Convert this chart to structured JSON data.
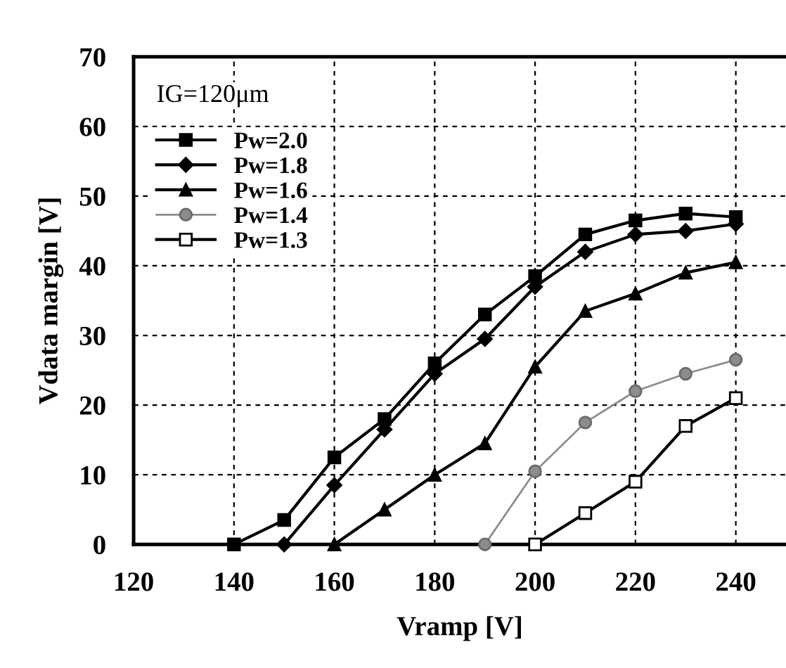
{
  "chart_data": {
    "type": "line",
    "xlabel": "Vramp [V]",
    "ylabel": "Vdata margin [V]",
    "xlim": [
      120,
      250
    ],
    "xticks": [
      120,
      140,
      160,
      180,
      200,
      220,
      240
    ],
    "ylim": [
      0,
      70
    ],
    "yticks": [
      0,
      10,
      20,
      30,
      40,
      50,
      60,
      70
    ],
    "grid": true,
    "legend": "top left",
    "annotations": [
      "IG=120μm"
    ],
    "series": [
      {
        "name": "Pw=2.0",
        "color": "#000000",
        "marker": "square",
        "x": [
          140,
          150,
          160,
          170,
          180,
          190,
          200,
          210,
          220,
          230,
          240
        ],
        "values": [
          0,
          3.5,
          12.5,
          18,
          26,
          33,
          38.5,
          44.5,
          46.5,
          47.5,
          47
        ]
      },
      {
        "name": "Pw=1.8",
        "color": "#000000",
        "marker": "diamond",
        "x": [
          150,
          160,
          170,
          180,
          190,
          200,
          210,
          220,
          230,
          240
        ],
        "values": [
          0,
          8.5,
          16.5,
          24.5,
          29.5,
          37,
          42,
          44.5,
          45,
          46
        ]
      },
      {
        "name": "Pw=1.6",
        "color": "#000000",
        "marker": "triangle",
        "x": [
          160,
          170,
          180,
          190,
          200,
          210,
          220,
          230,
          240
        ],
        "values": [
          0,
          5,
          10,
          14.5,
          25.5,
          33.5,
          36,
          39,
          40.5
        ]
      },
      {
        "name": "Pw=1.4",
        "color": "#8c8c8c",
        "marker": "circle",
        "x": [
          190,
          200,
          210,
          220,
          230,
          240
        ],
        "values": [
          0,
          10.5,
          17.5,
          22,
          24.5,
          26.5
        ]
      },
      {
        "name": "Pw=1.3",
        "color": "#000000",
        "marker": "square",
        "x": [
          200,
          210,
          220,
          230,
          240
        ],
        "values": [
          0,
          4.5,
          9,
          17,
          21
        ]
      }
    ]
  }
}
